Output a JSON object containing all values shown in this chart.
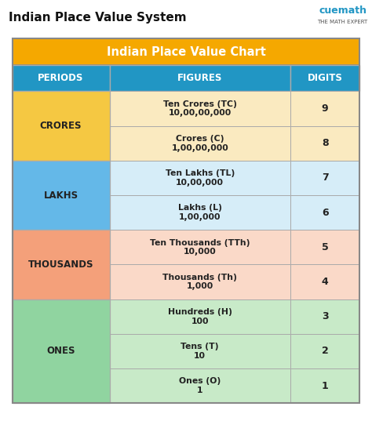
{
  "title": "Indian Place Value System",
  "chart_title": "Indian Place Value Chart",
  "header_bg": "#F5A800",
  "header_text_color": "#FFFFFF",
  "col_header_bg": "#2196C4",
  "col_header_text_color": "#FFFFFF",
  "columns": [
    "PERIODS",
    "FIGURES",
    "DIGITS"
  ],
  "periods": [
    {
      "name": "CRORES",
      "color": "#F5C842",
      "rows": 2
    },
    {
      "name": "LAKHS",
      "color": "#64B8E8",
      "rows": 2
    },
    {
      "name": "THOUSANDS",
      "color": "#F4A07A",
      "rows": 2
    },
    {
      "name": "ONES",
      "color": "#90D4A0",
      "rows": 3
    }
  ],
  "rows": [
    {
      "period": "CRORES",
      "figure": "Ten Crores (TC)\n10,00,00,000",
      "digit": "9",
      "fig_color": "#FAEAC0",
      "dig_color": "#FAEAC0"
    },
    {
      "period": "CRORES",
      "figure": "Crores (C)\n1,00,00,000",
      "digit": "8",
      "fig_color": "#FAEAC0",
      "dig_color": "#FAEAC0"
    },
    {
      "period": "LAKHS",
      "figure": "Ten Lakhs (TL)\n10,00,000",
      "digit": "7",
      "fig_color": "#D6EDF8",
      "dig_color": "#D6EDF8"
    },
    {
      "period": "LAKHS",
      "figure": "Lakhs (L)\n1,00,000",
      "digit": "6",
      "fig_color": "#D6EDF8",
      "dig_color": "#D6EDF8"
    },
    {
      "period": "THOUSANDS",
      "figure": "Ten Thousands (TTh)\n10,000",
      "digit": "5",
      "fig_color": "#FAD9C8",
      "dig_color": "#FAD9C8"
    },
    {
      "period": "THOUSANDS",
      "figure": "Thousands (Th)\n1,000",
      "digit": "4",
      "fig_color": "#FAD9C8",
      "dig_color": "#FAD9C8"
    },
    {
      "period": "ONES",
      "figure": "Hundreds (H)\n100",
      "digit": "3",
      "fig_color": "#C8EAC8",
      "dig_color": "#C8EAC8"
    },
    {
      "period": "ONES",
      "figure": "Tens (T)\n10",
      "digit": "2",
      "fig_color": "#C8EAC8",
      "dig_color": "#C8EAC8"
    },
    {
      "period": "ONES",
      "figure": "Ones (O)\n1",
      "digit": "1",
      "fig_color": "#C8EAC8",
      "dig_color": "#C8EAC8"
    }
  ],
  "period_colors": {
    "CRORES": "#F5C842",
    "LAKHS": "#64B8E8",
    "THOUSANDS": "#F4A07A",
    "ONES": "#90D4A0"
  },
  "fig_colors": {
    "CRORES": "#FAEAC0",
    "LAKHS": "#D6EDF8",
    "THOUSANDS": "#FAD9C8",
    "ONES": "#C8EAC8"
  },
  "outer_border_color": "#888888",
  "grid_color": "#AAAAAA",
  "background_color": "#FFFFFF"
}
